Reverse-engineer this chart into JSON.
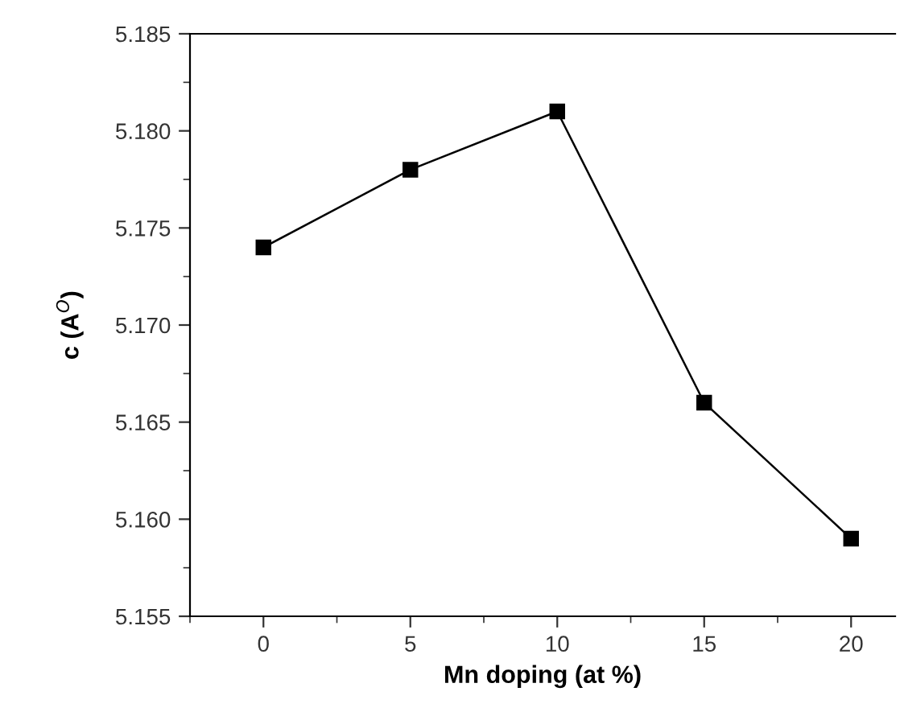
{
  "chart_data": {
    "type": "line",
    "xlabel": "Mn doping (at %)",
    "ylabel": "c (A$^{O}$)",
    "x": [
      0,
      5,
      10,
      15,
      20
    ],
    "series": [
      {
        "color": "#000000",
        "values": [
          5.174,
          5.178,
          5.181,
          5.166,
          5.159
        ]
      }
    ],
    "xlim": [
      -2.5,
      21.5
    ],
    "xticks": [
      0,
      5,
      10,
      15,
      20
    ],
    "ylim": [
      5.155,
      5.185
    ],
    "yticks": [
      {
        "value": 5.155,
        "label": "5.155"
      },
      {
        "value": 5.16,
        "label": "5.160"
      },
      {
        "value": 5.165,
        "label": "5.165"
      },
      {
        "value": 5.17,
        "label": "5.170"
      },
      {
        "value": 5.175,
        "label": "5.175"
      },
      {
        "value": 5.18,
        "label": "5.180"
      },
      {
        "value": 5.185,
        "label": "5.185"
      }
    ],
    "marker": "square",
    "line_style": "solid",
    "grid": false,
    "legend": false
  }
}
